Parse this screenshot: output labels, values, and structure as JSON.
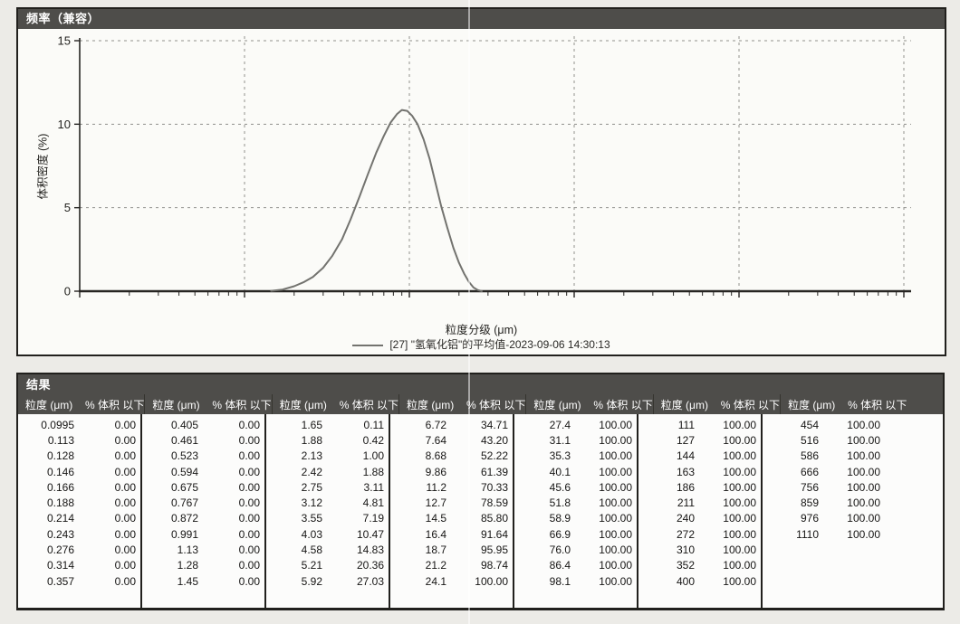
{
  "colors": {
    "titlebar_bg": "#4e4d4a",
    "titlebar_text": "#ffffff",
    "panel_border": "#21201d",
    "grid": "#90908c",
    "axis": "#262522",
    "curve": "#73736f",
    "page_bg": "#ecebe7"
  },
  "chart_panel": {
    "title": "频率（兼容）",
    "ylabel": "体积密度 (%)",
    "xlabel": "粒度分级 (μm)",
    "legend": "[27] \"氢氧化铝\"的平均值-2023-09-06 14:30:13"
  },
  "chart_data": {
    "type": "line",
    "title": "频率（兼容）",
    "xlabel": "粒度分级 (μm)",
    "ylabel": "体积密度 (%)",
    "x_scale": "log",
    "xlim": [
      0.1,
      10000
    ],
    "ylim": [
      0,
      15
    ],
    "x_ticks": [
      "0.1",
      "1.0",
      "10.0",
      "100.0",
      "1,000.0",
      "10,000.0"
    ],
    "x_tick_values": [
      0.1,
      1,
      10,
      100,
      1000,
      10000
    ],
    "y_ticks": [
      0,
      5,
      10,
      15
    ],
    "grid": "dashed",
    "legend_position": "bottom",
    "series": [
      {
        "name": "[27] \"氢氧化铝\"的平均值-2023-09-06 14:30:13",
        "color": "#73736f",
        "peak": {
          "x_um": 9.0,
          "y_pct": 10.85
        },
        "points": [
          [
            1.45,
            0.02
          ],
          [
            1.7,
            0.1
          ],
          [
            2.0,
            0.3
          ],
          [
            2.3,
            0.55
          ],
          [
            2.6,
            0.85
          ],
          [
            3.0,
            1.4
          ],
          [
            3.4,
            2.1
          ],
          [
            3.9,
            3.1
          ],
          [
            4.4,
            4.3
          ],
          [
            5.0,
            5.7
          ],
          [
            5.6,
            7.0
          ],
          [
            6.3,
            8.3
          ],
          [
            7.0,
            9.3
          ],
          [
            7.7,
            10.1
          ],
          [
            8.4,
            10.6
          ],
          [
            9.0,
            10.85
          ],
          [
            9.7,
            10.8
          ],
          [
            10.4,
            10.5
          ],
          [
            11.2,
            10.0
          ],
          [
            12.2,
            9.1
          ],
          [
            13.3,
            7.9
          ],
          [
            14.4,
            6.5
          ],
          [
            15.6,
            5.1
          ],
          [
            17.0,
            3.8
          ],
          [
            18.5,
            2.6
          ],
          [
            20.0,
            1.7
          ],
          [
            21.5,
            1.05
          ],
          [
            23.0,
            0.55
          ],
          [
            24.5,
            0.22
          ],
          [
            26.0,
            0.07
          ],
          [
            27.5,
            0.0
          ]
        ]
      }
    ]
  },
  "results_table": {
    "title": "结果",
    "size_header": "粒度 (μm)",
    "pct_header": "% 体积 以下",
    "groups": [
      [
        [
          "0.0995",
          "0.00"
        ],
        [
          "0.113",
          "0.00"
        ],
        [
          "0.128",
          "0.00"
        ],
        [
          "0.146",
          "0.00"
        ],
        [
          "0.166",
          "0.00"
        ],
        [
          "0.188",
          "0.00"
        ],
        [
          "0.214",
          "0.00"
        ],
        [
          "0.243",
          "0.00"
        ],
        [
          "0.276",
          "0.00"
        ],
        [
          "0.314",
          "0.00"
        ],
        [
          "0.357",
          "0.00"
        ]
      ],
      [
        [
          "0.405",
          "0.00"
        ],
        [
          "0.461",
          "0.00"
        ],
        [
          "0.523",
          "0.00"
        ],
        [
          "0.594",
          "0.00"
        ],
        [
          "0.675",
          "0.00"
        ],
        [
          "0.767",
          "0.00"
        ],
        [
          "0.872",
          "0.00"
        ],
        [
          "0.991",
          "0.00"
        ],
        [
          "1.13",
          "0.00"
        ],
        [
          "1.28",
          "0.00"
        ],
        [
          "1.45",
          "0.00"
        ]
      ],
      [
        [
          "1.65",
          "0.11"
        ],
        [
          "1.88",
          "0.42"
        ],
        [
          "2.13",
          "1.00"
        ],
        [
          "2.42",
          "1.88"
        ],
        [
          "2.75",
          "3.11"
        ],
        [
          "3.12",
          "4.81"
        ],
        [
          "3.55",
          "7.19"
        ],
        [
          "4.03",
          "10.47"
        ],
        [
          "4.58",
          "14.83"
        ],
        [
          "5.21",
          "20.36"
        ],
        [
          "5.92",
          "27.03"
        ]
      ],
      [
        [
          "6.72",
          "34.71"
        ],
        [
          "7.64",
          "43.20"
        ],
        [
          "8.68",
          "52.22"
        ],
        [
          "9.86",
          "61.39"
        ],
        [
          "11.2",
          "70.33"
        ],
        [
          "12.7",
          "78.59"
        ],
        [
          "14.5",
          "85.80"
        ],
        [
          "16.4",
          "91.64"
        ],
        [
          "18.7",
          "95.95"
        ],
        [
          "21.2",
          "98.74"
        ],
        [
          "24.1",
          "100.00"
        ]
      ],
      [
        [
          "27.4",
          "100.00"
        ],
        [
          "31.1",
          "100.00"
        ],
        [
          "35.3",
          "100.00"
        ],
        [
          "40.1",
          "100.00"
        ],
        [
          "45.6",
          "100.00"
        ],
        [
          "51.8",
          "100.00"
        ],
        [
          "58.9",
          "100.00"
        ],
        [
          "66.9",
          "100.00"
        ],
        [
          "76.0",
          "100.00"
        ],
        [
          "86.4",
          "100.00"
        ],
        [
          "98.1",
          "100.00"
        ]
      ],
      [
        [
          "111",
          "100.00"
        ],
        [
          "127",
          "100.00"
        ],
        [
          "144",
          "100.00"
        ],
        [
          "163",
          "100.00"
        ],
        [
          "186",
          "100.00"
        ],
        [
          "211",
          "100.00"
        ],
        [
          "240",
          "100.00"
        ],
        [
          "272",
          "100.00"
        ],
        [
          "310",
          "100.00"
        ],
        [
          "352",
          "100.00"
        ],
        [
          "400",
          "100.00"
        ]
      ],
      [
        [
          "454",
          "100.00"
        ],
        [
          "516",
          "100.00"
        ],
        [
          "586",
          "100.00"
        ],
        [
          "666",
          "100.00"
        ],
        [
          "756",
          "100.00"
        ],
        [
          "859",
          "100.00"
        ],
        [
          "976",
          "100.00"
        ],
        [
          "1110",
          "100.00"
        ]
      ]
    ]
  }
}
